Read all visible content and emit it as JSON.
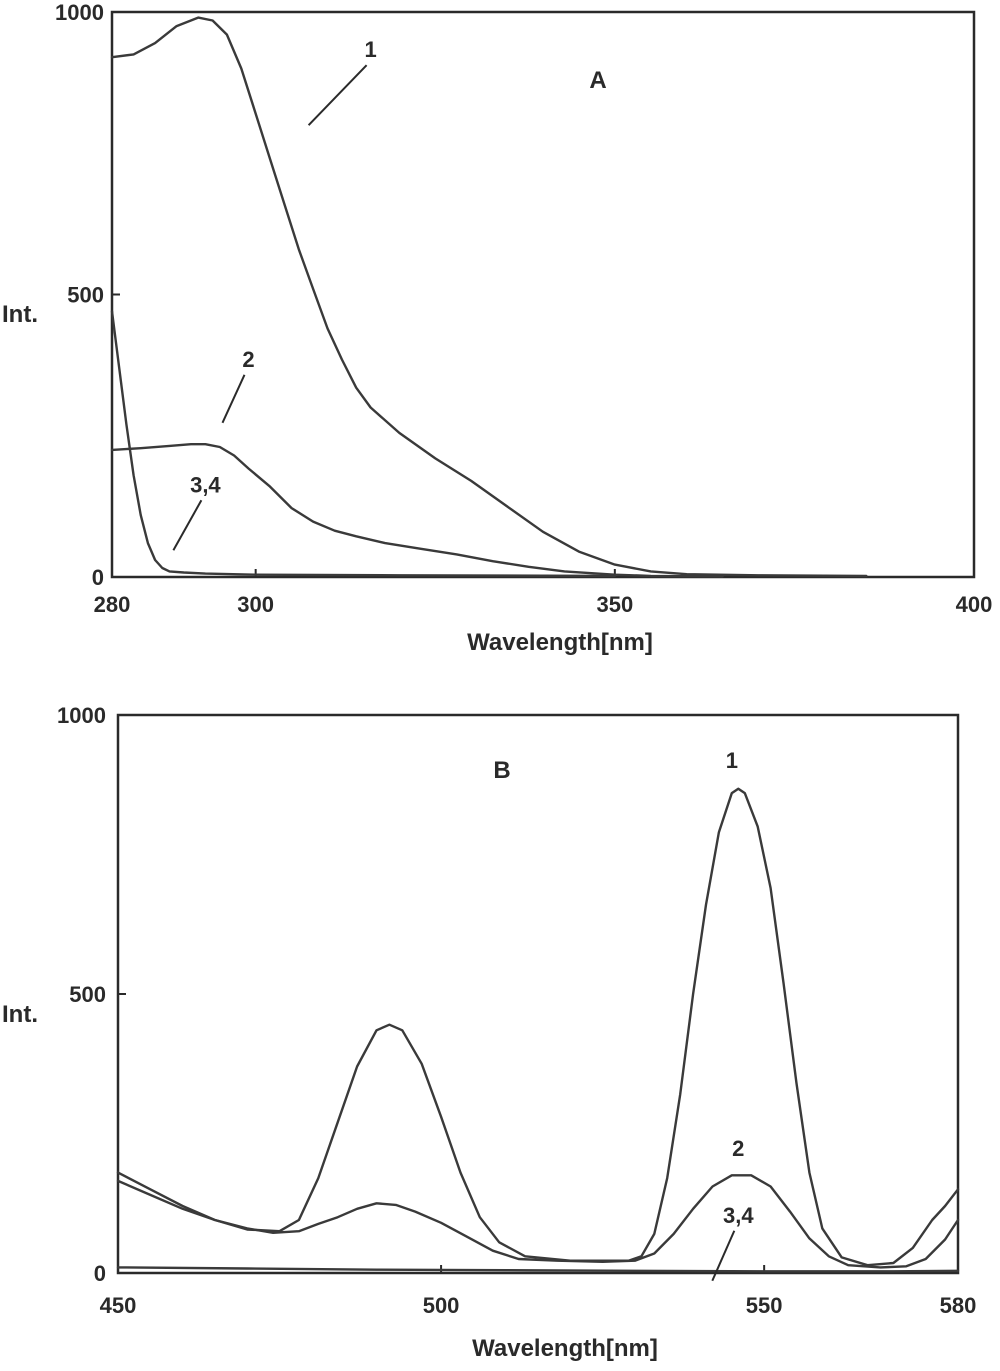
{
  "chart_data": [
    {
      "type": "line",
      "panel_label": "A",
      "xlabel": "Wavelength[nm]",
      "ylabel": "Int.",
      "xlim": [
        280,
        400
      ],
      "ylim": [
        0,
        1000
      ],
      "xticks": [
        280,
        300,
        350,
        400
      ],
      "yticks": [
        0,
        500,
        1000
      ],
      "grid": false,
      "series": [
        {
          "name": "1",
          "label_at": {
            "x": 316,
            "y": 920
          },
          "points": [
            [
              280,
              920
            ],
            [
              283,
              925
            ],
            [
              286,
              945
            ],
            [
              289,
              975
            ],
            [
              292,
              990
            ],
            [
              294,
              985
            ],
            [
              296,
              960
            ],
            [
              298,
              900
            ],
            [
              300,
              820
            ],
            [
              302,
              740
            ],
            [
              304,
              660
            ],
            [
              306,
              580
            ],
            [
              308,
              510
            ],
            [
              310,
              440
            ],
            [
              312,
              385
            ],
            [
              314,
              335
            ],
            [
              316,
              300
            ],
            [
              320,
              255
            ],
            [
              325,
              210
            ],
            [
              330,
              170
            ],
            [
              335,
              125
            ],
            [
              340,
              80
            ],
            [
              345,
              45
            ],
            [
              350,
              22
            ],
            [
              355,
              10
            ],
            [
              360,
              5
            ],
            [
              370,
              3
            ],
            [
              385,
              2
            ]
          ]
        },
        {
          "name": "2",
          "label_at": {
            "x": 299,
            "y": 372
          },
          "points": [
            [
              280,
              225
            ],
            [
              284,
              228
            ],
            [
              288,
              232
            ],
            [
              291,
              235
            ],
            [
              293,
              235
            ],
            [
              295,
              230
            ],
            [
              297,
              215
            ],
            [
              299,
              192
            ],
            [
              302,
              160
            ],
            [
              305,
              122
            ],
            [
              308,
              98
            ],
            [
              311,
              82
            ],
            [
              314,
              72
            ],
            [
              318,
              60
            ],
            [
              323,
              50
            ],
            [
              328,
              40
            ],
            [
              333,
              28
            ],
            [
              338,
              18
            ],
            [
              343,
              10
            ],
            [
              350,
              4
            ],
            [
              355,
              2
            ],
            [
              365,
              1
            ]
          ]
        },
        {
          "name": "3,4",
          "label_at": {
            "x": 293,
            "y": 150
          },
          "points": [
            [
              280,
              470
            ],
            [
              281,
              370
            ],
            [
              282,
              270
            ],
            [
              283,
              180
            ],
            [
              284,
              110
            ],
            [
              285,
              60
            ],
            [
              286,
              30
            ],
            [
              287,
              16
            ],
            [
              288,
              10
            ],
            [
              290,
              8
            ],
            [
              293,
              6
            ],
            [
              300,
              4
            ],
            [
              320,
              3
            ],
            [
              350,
              2
            ]
          ]
        }
      ]
    },
    {
      "type": "line",
      "panel_label": "B",
      "xlabel": "Wavelength[nm]",
      "ylabel": "Int.",
      "xlim": [
        450,
        580
      ],
      "ylim": [
        0,
        1000
      ],
      "xticks": [
        450,
        500,
        550,
        580
      ],
      "yticks": [
        0,
        500,
        1000
      ],
      "grid": false,
      "series": [
        {
          "name": "1",
          "label_at": {
            "x": 545,
            "y": 905
          },
          "points": [
            [
              450,
              180
            ],
            [
              455,
              150
            ],
            [
              460,
              120
            ],
            [
              465,
              95
            ],
            [
              470,
              78
            ],
            [
              475,
              75
            ],
            [
              478,
              95
            ],
            [
              481,
              170
            ],
            [
              484,
              270
            ],
            [
              487,
              370
            ],
            [
              490,
              435
            ],
            [
              492,
              445
            ],
            [
              494,
              435
            ],
            [
              497,
              375
            ],
            [
              500,
              280
            ],
            [
              503,
              180
            ],
            [
              506,
              100
            ],
            [
              509,
              55
            ],
            [
              513,
              30
            ],
            [
              520,
              22
            ],
            [
              525,
              22
            ],
            [
              529,
              22
            ],
            [
              531,
              30
            ],
            [
              533,
              70
            ],
            [
              535,
              170
            ],
            [
              537,
              320
            ],
            [
              539,
              500
            ],
            [
              541,
              660
            ],
            [
              543,
              790
            ],
            [
              545,
              860
            ],
            [
              546,
              868
            ],
            [
              547,
              860
            ],
            [
              549,
              800
            ],
            [
              551,
              690
            ],
            [
              553,
              520
            ],
            [
              555,
              340
            ],
            [
              557,
              180
            ],
            [
              559,
              80
            ],
            [
              562,
              28
            ],
            [
              566,
              14
            ],
            [
              570,
              18
            ],
            [
              573,
              45
            ],
            [
              576,
              95
            ],
            [
              578,
              120
            ],
            [
              580,
              150
            ]
          ]
        },
        {
          "name": "2",
          "label_at": {
            "x": 546,
            "y": 210
          },
          "points": [
            [
              450,
              165
            ],
            [
              455,
              140
            ],
            [
              460,
              115
            ],
            [
              465,
              95
            ],
            [
              470,
              80
            ],
            [
              474,
              72
            ],
            [
              478,
              75
            ],
            [
              481,
              88
            ],
            [
              484,
              100
            ],
            [
              487,
              115
            ],
            [
              490,
              125
            ],
            [
              493,
              122
            ],
            [
              496,
              110
            ],
            [
              500,
              90
            ],
            [
              504,
              65
            ],
            [
              508,
              40
            ],
            [
              512,
              25
            ],
            [
              518,
              22
            ],
            [
              525,
              20
            ],
            [
              530,
              22
            ],
            [
              533,
              35
            ],
            [
              536,
              70
            ],
            [
              539,
              115
            ],
            [
              542,
              155
            ],
            [
              545,
              175
            ],
            [
              548,
              175
            ],
            [
              551,
              155
            ],
            [
              554,
              110
            ],
            [
              557,
              62
            ],
            [
              560,
              30
            ],
            [
              563,
              14
            ],
            [
              568,
              10
            ],
            [
              572,
              12
            ],
            [
              575,
              25
            ],
            [
              578,
              60
            ],
            [
              580,
              95
            ]
          ]
        },
        {
          "name": "3,4",
          "label_at": {
            "x": 546,
            "y": 90
          },
          "points": [
            [
              450,
              10
            ],
            [
              470,
              8
            ],
            [
              490,
              6
            ],
            [
              510,
              5
            ],
            [
              530,
              4
            ],
            [
              550,
              3
            ],
            [
              570,
              3
            ],
            [
              580,
              4
            ]
          ]
        }
      ]
    }
  ]
}
